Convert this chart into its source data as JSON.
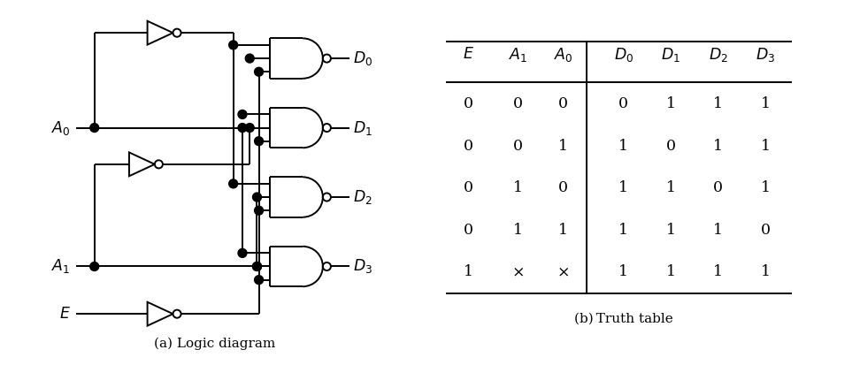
{
  "fig_width": 9.72,
  "fig_height": 4.13,
  "bg_color": "#ffffff",
  "line_color": "#000000",
  "line_width": 1.4,
  "caption_left": "(a) Logic diagram",
  "caption_right": "(b) Truth table",
  "table_rows": [
    [
      "0",
      "0",
      "0",
      "0",
      "1",
      "1",
      "1"
    ],
    [
      "0",
      "0",
      "1",
      "1",
      "0",
      "1",
      "1"
    ],
    [
      "0",
      "1",
      "0",
      "1",
      "1",
      "0",
      "1"
    ],
    [
      "0",
      "1",
      "1",
      "1",
      "1",
      "1",
      "0"
    ],
    [
      "1",
      "×",
      "×",
      "1",
      "1",
      "1",
      "1"
    ]
  ]
}
